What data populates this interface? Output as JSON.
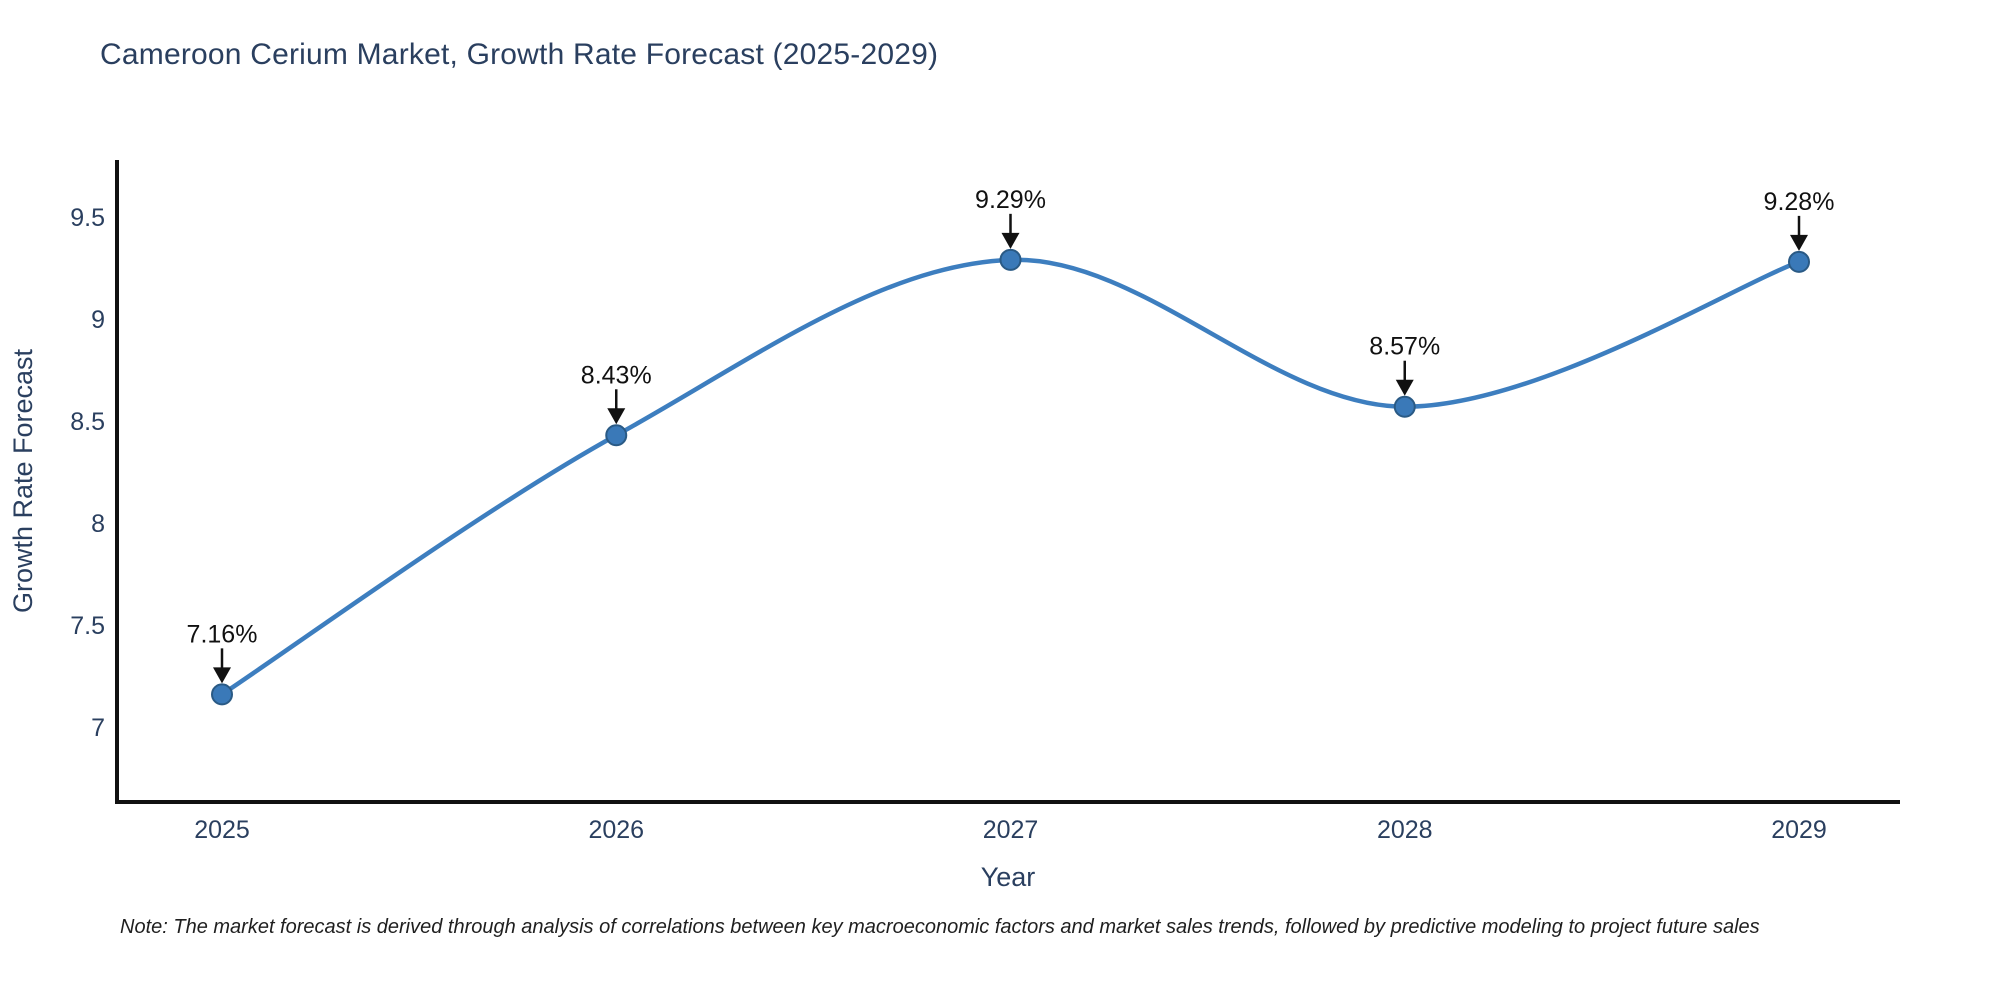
{
  "note": "Note: The market forecast is derived through analysis of correlations between key macroeconomic factors and market sales trends, followed by predictive modeling to project future sales",
  "chart_data": {
    "type": "line",
    "title": "Cameroon Cerium Market, Growth Rate Forecast (2025-2029)",
    "xlabel": "Year",
    "ylabel": "Growth Rate Forecast",
    "x": [
      2025,
      2026,
      2027,
      2028,
      2029
    ],
    "values": [
      7.16,
      8.43,
      9.29,
      8.57,
      9.28
    ],
    "point_labels": [
      "7.16%",
      "8.43%",
      "9.29%",
      "8.57%",
      "9.28%"
    ],
    "x_tick_labels": [
      "2025",
      "2026",
      "2027",
      "2028",
      "2029"
    ],
    "y_ticks": [
      7,
      7.5,
      8,
      8.5,
      9,
      9.5
    ],
    "ylim": [
      6.62,
      9.78
    ],
    "line_shape": "spline",
    "grid": false,
    "legend": "none",
    "colors": {
      "line": "#3d7ebf",
      "marker_fill": "#3a79b8",
      "marker_edge": "#2a5a85",
      "axis_line": "#111111",
      "tick_text": "#2a3f5f",
      "axis_title_text": "#2a3f5f",
      "annotation_text": "#111111",
      "arrow": "#111111",
      "note_text": "#1f1f1f"
    }
  }
}
